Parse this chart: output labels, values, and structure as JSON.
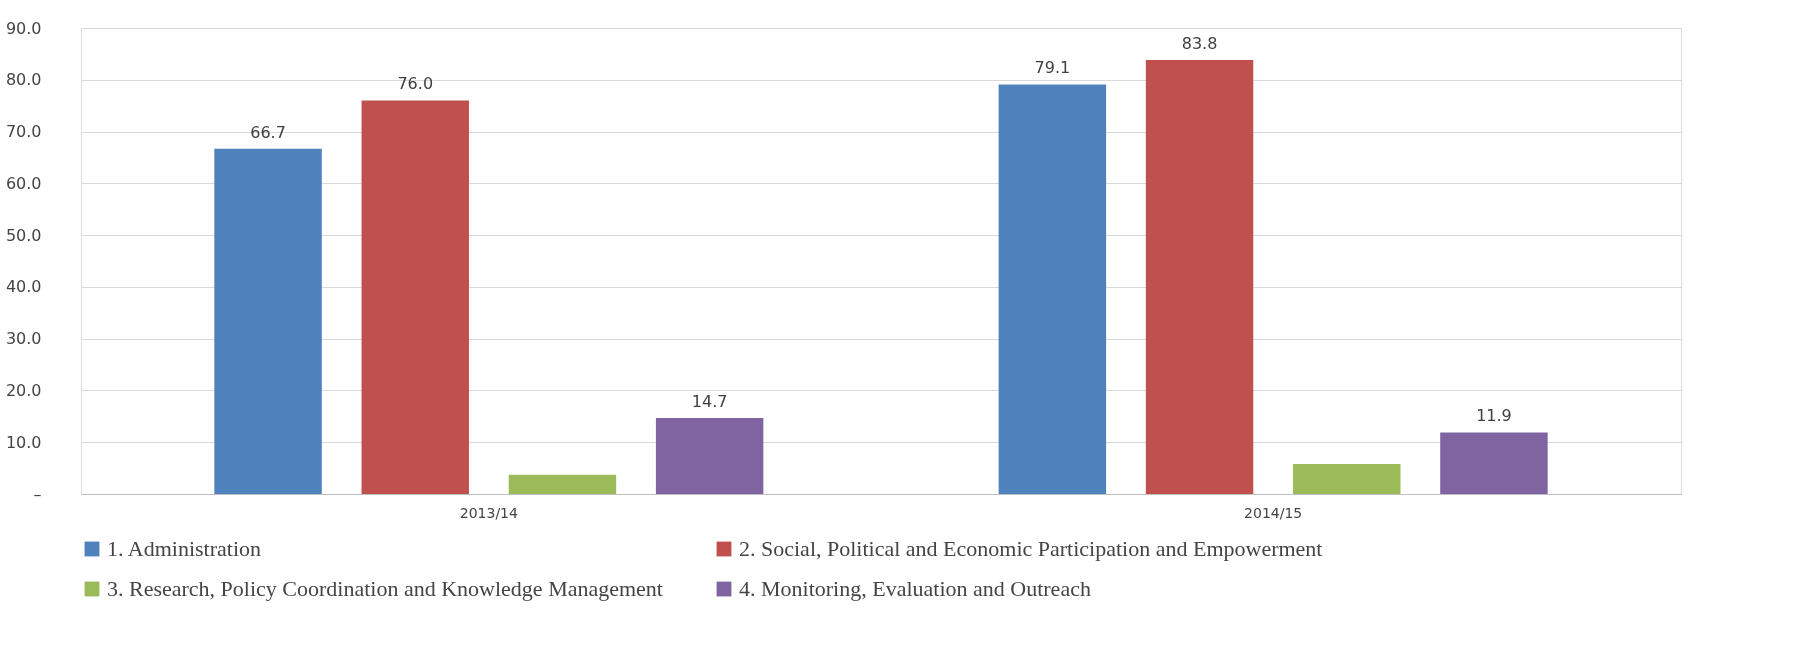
{
  "chart_data": {
    "type": "bar",
    "categories": [
      "2013/14",
      "2014/15"
    ],
    "series": [
      {
        "name": "1. Administration",
        "color": "#4f81bd",
        "values": [
          66.7,
          79.1
        ],
        "value_labels": [
          "66.7",
          "79.1"
        ]
      },
      {
        "name": "2. Social, Political and Economic Participation and Empowerment",
        "color": "#c0504d",
        "values": [
          76.0,
          83.8
        ],
        "value_labels": [
          "76.0",
          "83.8"
        ]
      },
      {
        "name": "3. Research, Policy Coordination and Knowledge Management",
        "color": "#9bbb59",
        "values": [
          3.7,
          5.8
        ],
        "value_labels": [
          null,
          null
        ]
      },
      {
        "name": "4. Monitoring, Evaluation and Outreach",
        "color": "#8064a2",
        "values": [
          14.7,
          11.9
        ],
        "value_labels": [
          "14.7",
          "11.9"
        ]
      }
    ],
    "ylim": [
      0,
      90
    ],
    "yticks": [
      {
        "value": 0,
        "label": "–"
      },
      {
        "value": 10,
        "label": "10.0"
      },
      {
        "value": 20,
        "label": "20.0"
      },
      {
        "value": 30,
        "label": "30.0"
      },
      {
        "value": 40,
        "label": "40.0"
      },
      {
        "value": 50,
        "label": "50.0"
      },
      {
        "value": 60,
        "label": "60.0"
      },
      {
        "value": 70,
        "label": "70.0"
      },
      {
        "value": 80,
        "label": "80.0"
      },
      {
        "value": 90,
        "label": "90.0"
      }
    ],
    "grid": "y",
    "legend": "bottom"
  }
}
